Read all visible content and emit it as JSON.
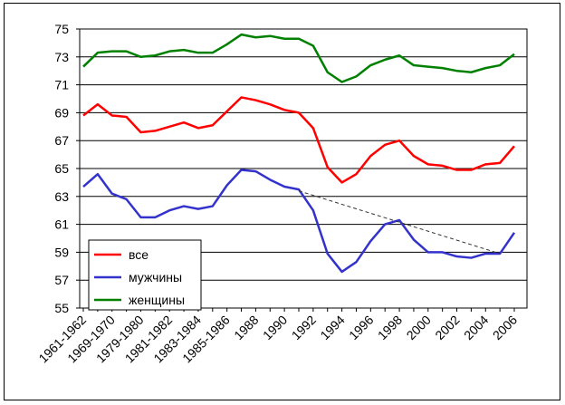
{
  "chart_data": {
    "type": "line",
    "categories": [
      "1961-1962",
      null,
      "1969-1970",
      null,
      "1979-1980",
      null,
      "1981-1982",
      null,
      "1983-1984",
      null,
      "1985-1986",
      null,
      "1988",
      null,
      "1990",
      null,
      "1992",
      null,
      "1994",
      null,
      "1996",
      null,
      "1998",
      null,
      "2000",
      null,
      "2002",
      null,
      "2004",
      null,
      "2006"
    ],
    "series": [
      {
        "name": "все",
        "color": "#ff0000",
        "values": [
          68.8,
          69.6,
          68.8,
          68.7,
          67.6,
          67.7,
          68.0,
          68.3,
          67.9,
          68.1,
          69.1,
          70.1,
          69.9,
          69.6,
          69.2,
          69.0,
          67.9,
          65.1,
          64.0,
          64.6,
          65.9,
          66.7,
          67.0,
          65.9,
          65.3,
          65.2,
          64.9,
          64.9,
          65.3,
          65.4,
          66.6
        ]
      },
      {
        "name": "мужчины",
        "color": "#3333cc",
        "values": [
          63.7,
          64.6,
          63.2,
          62.8,
          61.5,
          61.5,
          62.0,
          62.3,
          62.1,
          62.3,
          63.8,
          64.9,
          64.8,
          64.2,
          63.7,
          63.5,
          62.0,
          58.9,
          57.6,
          58.3,
          59.8,
          61.0,
          61.3,
          59.9,
          59.0,
          59.0,
          58.7,
          58.6,
          58.9,
          58.9,
          60.4
        ]
      },
      {
        "name": "женщины",
        "color": "#008000",
        "values": [
          72.3,
          73.3,
          73.4,
          73.4,
          73.0,
          73.1,
          73.4,
          73.5,
          73.3,
          73.3,
          73.9,
          74.6,
          74.4,
          74.5,
          74.3,
          74.3,
          73.8,
          71.9,
          71.2,
          71.6,
          72.4,
          72.8,
          73.1,
          72.4,
          72.3,
          72.2,
          72.0,
          71.9,
          72.2,
          72.4,
          73.2
        ]
      }
    ],
    "trend": {
      "x": [
        15,
        29
      ],
      "values": [
        63.4,
        58.9
      ],
      "color": "#333333",
      "style": "dashed"
    },
    "ylim": [
      55,
      75
    ],
    "yticks": [
      55,
      57,
      59,
      61,
      63,
      65,
      67,
      69,
      71,
      73,
      75
    ],
    "grid": true,
    "legend": "lower left"
  }
}
